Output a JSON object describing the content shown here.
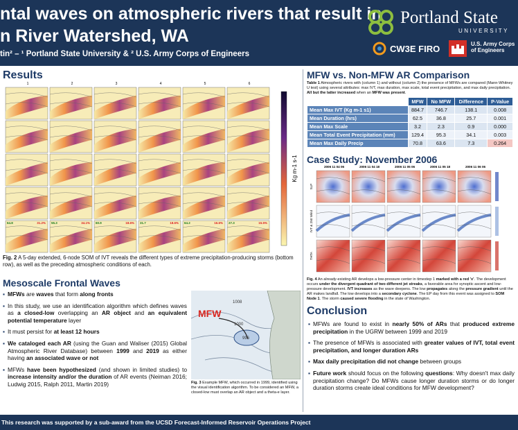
{
  "header": {
    "title_lines": [
      "ntal waves on atmospheric rivers that result in",
      "n River Watershed, WA"
    ],
    "authors": "tin² – ¹ Portland State University & ² U.S. Army Corps of Engineers",
    "logos": {
      "psu": "Portland State",
      "psu_sub": "UNIVERSITY",
      "cw3e": "CW3E FIRO",
      "usace": [
        "U.S. Army Corps",
        "of Engineers"
      ]
    }
  },
  "results": {
    "heading": "Results",
    "figure": {
      "columns": [
        "1",
        "2",
        "3",
        "4",
        "5",
        "6"
      ],
      "colorbar_label": "Kg m-1 s-1",
      "bottom_labels": [
        [
          "64.8",
          "31.2%"
        ],
        [
          "55.3",
          "34.1%"
        ],
        [
          "60.9",
          "18.6%"
        ],
        [
          "31.7",
          "18.6%"
        ],
        [
          "64.2",
          "16.6%"
        ],
        [
          "27.3",
          "15.5%"
        ]
      ]
    },
    "caption": [
      {
        "text": "Fig. 2",
        "bold": true
      },
      {
        "text": " A 5-day extended, 6-node SOM of IVT reveals the different types of extreme precipitation-producing storms (bottom row), as well as the preceding atmospheric conditions of each."
      }
    ]
  },
  "waves": {
    "heading": "Mesoscale Frontal Waves",
    "bullets": [
      [
        {
          "text": "MFWs",
          "bold": true
        },
        {
          "text": " are "
        },
        {
          "text": "waves",
          "bold": true
        },
        {
          "text": " that form "
        },
        {
          "text": "along fronts",
          "bold": true
        }
      ],
      [
        {
          "text": "In this study, we use an identification algorithm which defines waves as "
        },
        {
          "text": "a closed-low",
          "bold": true
        },
        {
          "text": " overlapping an "
        },
        {
          "text": "AR object",
          "bold": true
        },
        {
          "text": " and "
        },
        {
          "text": "an equivalent potential temperature",
          "bold": true
        },
        {
          "text": " layer"
        }
      ],
      [
        {
          "text": "It must persist for "
        },
        {
          "text": "at least 12 hours",
          "bold": true
        }
      ],
      [
        {
          "text": "We cataloged each AR",
          "bold": true
        },
        {
          "text": " (using the Guan and Waliser (2015) Global Atmospheric River Database) between "
        },
        {
          "text": "1999",
          "bold": true
        },
        {
          "text": " and "
        },
        {
          "text": "2019",
          "bold": true
        },
        {
          "text": " as either having "
        },
        {
          "text": "an associated wave or not",
          "bold": true
        }
      ],
      [
        {
          "text": "MFWs "
        },
        {
          "text": "have been hypothesized",
          "bold": true
        },
        {
          "text": " (and shown in limited studies) to "
        },
        {
          "text": "increase intensity and/or the duration",
          "bold": true
        },
        {
          "text": " of AR events (Neiman 2016; Ludwig 2015, Ralph 2011, Martin 2019)"
        }
      ]
    ],
    "figure": {
      "label": "MFW",
      "isobars": [
        "1008",
        "1000",
        "996"
      ]
    },
    "caption": [
      {
        "text": "Fig. 3",
        "bold": true
      },
      {
        "text": " Example MFW, which occurred in 1999, identified using the visual identification algorithm. To be considered an MFW, a closed-low must overlap an AR object and a theta-e layer."
      }
    ]
  },
  "comparison": {
    "heading": "MFW vs. Non-MFW AR Comparison",
    "caption": [
      {
        "text": "Table 1",
        "bold": true
      },
      {
        "text": " Atmospheric rivers with (column 1) and without (column 2) the presence of MFWs are compared (Mann-Whitney U test) using several attributes: max IVT, max duration, max scale, total event precipitation, and max daily precipitation. "
      },
      {
        "text": "All but the latter increased",
        "bold": true
      },
      {
        "text": " when an "
      },
      {
        "text": "MFW was present",
        "bold": true
      },
      {
        "text": "."
      }
    ],
    "table": {
      "columns": [
        "MFW",
        "No MFW",
        "Difference",
        "P-Value"
      ],
      "rows": [
        [
          "Mean Max IVT (Kg m-1 s1)",
          "884.7",
          "746.7",
          "138.1",
          "0.008"
        ],
        [
          "Mean Duration (hrs)",
          "62.5",
          "36.8",
          "25.7",
          "0.001"
        ],
        [
          "Mean Max Scale",
          "3.2",
          "2.3",
          "0.9",
          "0.000"
        ],
        [
          "Mean Total Event Precipitation (mm)",
          "129.4",
          "95.3",
          "34.1",
          "0.003"
        ],
        [
          "Mean Max Daily Precip",
          "70.8",
          "63.6",
          "7.3",
          "0.264"
        ]
      ]
    }
  },
  "case_study": {
    "heading": "Case Study: November 2006",
    "figure": {
      "columns": [
        "2006 11 04 06",
        "2006 11 04 18",
        "2006 11 05 06",
        "2006 11 05 18",
        "2006 11 06 06"
      ],
      "rows": [
        "SLP",
        "IVT & 250 Wind",
        "THTA"
      ]
    },
    "caption": [
      {
        "text": "Fig. 4",
        "bold": true
      },
      {
        "text": " An already-existing AR develops a low-pressure center in timestep 1 "
      },
      {
        "text": "marked with a red 'x'",
        "bold": true
      },
      {
        "text": ". The development occurs "
      },
      {
        "text": "under the divergent quadrant of two different jet streaks",
        "bold": true
      },
      {
        "text": ", a favorable area for synoptic ascent and low-pressure development. "
      },
      {
        "text": "IVT increases",
        "bold": true
      },
      {
        "text": " as the wave deepens. The low "
      },
      {
        "text": "propagates",
        "bold": true
      },
      {
        "text": " along the "
      },
      {
        "text": "pressure gradient",
        "bold": true
      },
      {
        "text": " until the AR makes landfall. The low develops into a "
      },
      {
        "text": "secondary cyclone",
        "bold": true
      },
      {
        "text": ". The EP day from this event was assigned to "
      },
      {
        "text": "SOM Node 1",
        "bold": true
      },
      {
        "text": ". The storm "
      },
      {
        "text": "caused severe flooding",
        "bold": true
      },
      {
        "text": " in the state of Washington."
      }
    ]
  },
  "conclusion": {
    "heading": "Conclusion",
    "bullets": [
      [
        {
          "text": "MFWs are found to exist in "
        },
        {
          "text": "nearly 50% of ARs",
          "bold": true
        },
        {
          "text": " that "
        },
        {
          "text": "produced extreme precipitation",
          "bold": true
        },
        {
          "text": " in the UGRW between 1999 and 2019"
        }
      ],
      [
        {
          "text": "The presence of MFWs is associated with "
        },
        {
          "text": "greater values of IVT, total event precipitation, and longer duration ARs",
          "bold": true
        }
      ],
      [
        {
          "text": "Max daily precipitation did not change",
          "bold": true
        },
        {
          "text": " between groups"
        }
      ],
      [
        {
          "text": "Future work",
          "bold": true
        },
        {
          "text": " should focus on the following "
        },
        {
          "text": "questions",
          "bold": true
        },
        {
          "text": ": Why doesn't max daily precipitation change? Do MFWs cause longer duration storms or do longer duration storms create ideal conditions for MFW development?"
        }
      ]
    ]
  },
  "footer": "This research was supported by a sub-award from the UCSD Forecast-Informed Reservoir Operations Project"
}
